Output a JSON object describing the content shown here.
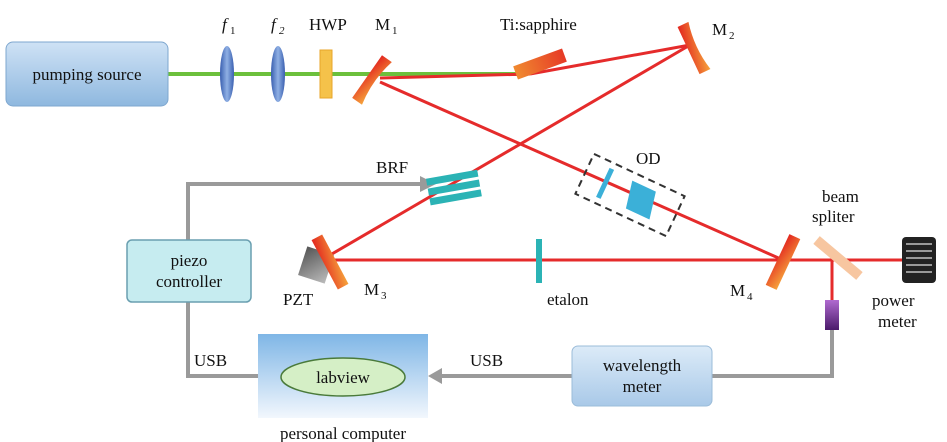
{
  "labels": {
    "pumping_source": "pumping source",
    "f1": "f",
    "f1_sub": "1",
    "f2": "f",
    "f2_sub": "2",
    "hwp": "HWP",
    "m1": "M",
    "m1_sub": "1",
    "ti_sapphire": "Ti:sapphire",
    "m2": "M",
    "m2_sub": "2",
    "brf": "BRF",
    "od": "OD",
    "beam_splitter_1": "beam",
    "beam_splitter_2": "spliter",
    "piezo_controller_1": "piezo",
    "piezo_controller_2": "controller",
    "pzt": "PZT",
    "m3": "M",
    "m3_sub": "3",
    "etalon": "etalon",
    "m4": "M",
    "m4_sub": "4",
    "power_meter_1": "power",
    "power_meter_2": "meter",
    "usb_left": "USB",
    "usb_right": "USB",
    "labview": "labview",
    "wavelength_meter_1": "wavelength",
    "wavelength_meter_2": "meter",
    "personal_computer": "personal computer"
  },
  "colors": {
    "green_beam": "#6cc03c",
    "red_beam": "#e52b2b",
    "signal_line": "#9a9a9a",
    "box_blue": "#a9cbe8",
    "box_cyan": "#c6ecf0",
    "mirror_red": "#e33a22",
    "mirror_orange": "#f4a23a"
  }
}
